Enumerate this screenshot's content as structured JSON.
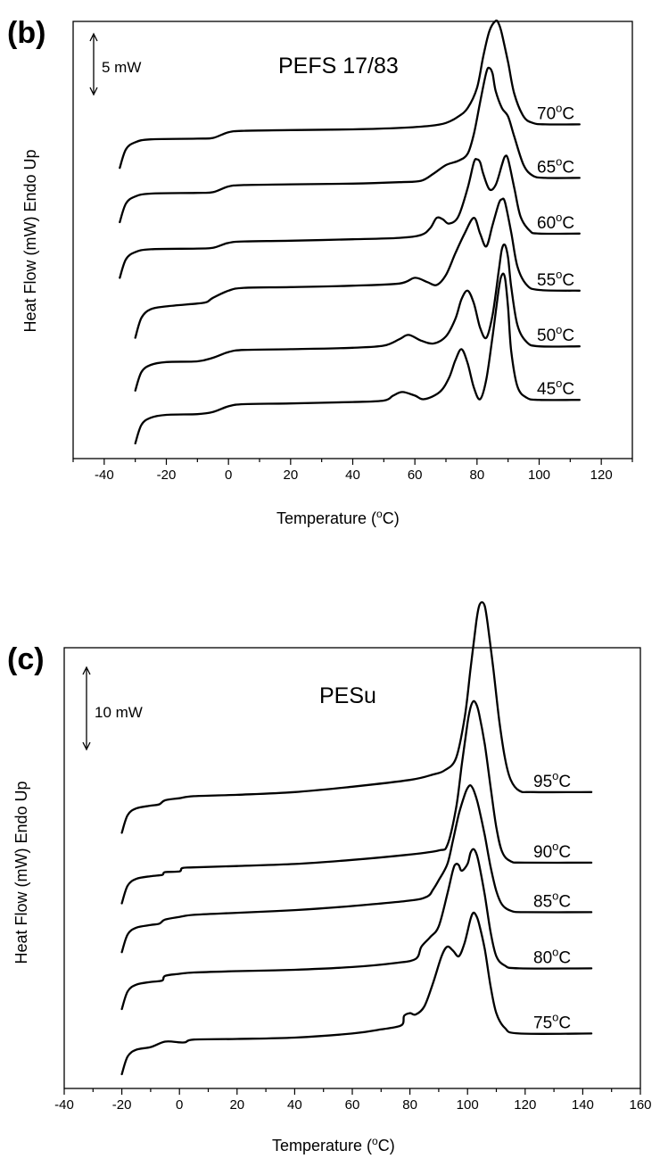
{
  "chart_data": [
    {
      "type": "line",
      "panel_label": "(b)",
      "title": "PEFS 17/83",
      "xlabel": "Temperature (°C)",
      "ylabel": "Heat Flow (mW) Endo Up",
      "scale_bar": "5 mW",
      "xlim": [
        -50,
        130
      ],
      "xticks": [
        -40,
        -20,
        0,
        20,
        40,
        60,
        80,
        100,
        120
      ],
      "grid": false,
      "series": [
        {
          "name": "45°C",
          "label": "45",
          "offset": 0,
          "x": [
            -30,
            -28,
            -25,
            -20,
            -10,
            -5,
            0,
            5,
            20,
            40,
            50,
            53,
            56,
            60,
            63,
            68,
            71,
            73,
            75,
            77,
            79,
            81,
            83,
            85,
            87,
            88,
            89,
            90,
            91,
            93,
            96,
            100,
            113
          ],
          "y": [
            0,
            1.3,
            1.8,
            2.0,
            2.05,
            2.2,
            2.6,
            2.75,
            2.8,
            2.9,
            3.0,
            3.35,
            3.6,
            3.35,
            3.1,
            3.6,
            4.6,
            5.8,
            6.6,
            5.6,
            3.9,
            3.1,
            4.5,
            7.5,
            10.8,
            11.8,
            11.6,
            9.5,
            6.5,
            4.0,
            3.2,
            3.05,
            3.05
          ]
        },
        {
          "name": "50°C",
          "label": "50",
          "offset": 3.7,
          "x": [
            -30,
            -28,
            -25,
            -20,
            -10,
            -5,
            0,
            5,
            20,
            40,
            50,
            55,
            58,
            62,
            66,
            70,
            73,
            75,
            77,
            79,
            81,
            83,
            85,
            87,
            88,
            89,
            90,
            91,
            93,
            96,
            100,
            113
          ],
          "y": [
            0,
            1.3,
            1.8,
            2.0,
            2.05,
            2.3,
            2.7,
            2.85,
            2.9,
            3.0,
            3.15,
            3.6,
            3.9,
            3.5,
            3.3,
            3.8,
            5.0,
            6.4,
            7.0,
            6.1,
            4.4,
            3.7,
            5.3,
            8.4,
            9.9,
            10.2,
            9.3,
            7.3,
            4.6,
            3.4,
            3.1,
            3.1
          ]
        },
        {
          "name": "55°C",
          "label": "55",
          "offset": 7.4,
          "x": [
            -30,
            -28,
            -25,
            -20,
            -10,
            -7,
            -5,
            0,
            5,
            20,
            40,
            55,
            60,
            64,
            67,
            70,
            73,
            76,
            79,
            81,
            83,
            85,
            87,
            88,
            89,
            91,
            93,
            96,
            100,
            113
          ],
          "y": [
            0,
            1.4,
            2.0,
            2.2,
            2.4,
            2.5,
            2.8,
            3.3,
            3.5,
            3.55,
            3.65,
            3.8,
            4.2,
            3.9,
            3.7,
            4.4,
            5.9,
            7.3,
            8.4,
            7.3,
            6.4,
            7.9,
            9.4,
            9.7,
            9.5,
            7.4,
            5.0,
            3.7,
            3.35,
            3.3
          ]
        },
        {
          "name": "60°C",
          "label": "60",
          "offset": 11.6,
          "x": [
            -35,
            -33,
            -30,
            -25,
            -10,
            -5,
            0,
            5,
            20,
            40,
            55,
            62,
            65,
            67,
            69,
            71,
            74,
            77,
            79,
            80,
            81,
            82,
            84,
            86,
            88,
            89,
            90,
            92,
            94,
            97,
            100,
            113
          ],
          "y": [
            0,
            1.3,
            1.8,
            2.0,
            2.05,
            2.1,
            2.45,
            2.55,
            2.6,
            2.7,
            2.8,
            3.0,
            3.5,
            4.2,
            4.1,
            3.8,
            4.3,
            6.3,
            8.1,
            8.3,
            8.1,
            7.3,
            6.2,
            6.5,
            7.9,
            8.5,
            8.3,
            6.3,
            4.3,
            3.3,
            3.1,
            3.1
          ]
        },
        {
          "name": "65°C",
          "label": "65",
          "offset": 15.5,
          "x": [
            -35,
            -33,
            -30,
            -25,
            -10,
            -5,
            0,
            5,
            20,
            40,
            55,
            62,
            66,
            70,
            74,
            77,
            79,
            81,
            83,
            84,
            85,
            86,
            88,
            90,
            92,
            95,
            98,
            102,
            113
          ],
          "y": [
            0,
            1.3,
            1.8,
            2.0,
            2.05,
            2.1,
            2.5,
            2.6,
            2.65,
            2.7,
            2.8,
            2.9,
            3.4,
            4.0,
            4.3,
            4.8,
            6.2,
            8.4,
            10.5,
            10.8,
            10.4,
            9.2,
            8.0,
            7.4,
            6.0,
            4.0,
            3.25,
            3.1,
            3.1
          ]
        },
        {
          "name": "70°C",
          "label": "70",
          "offset": 19.3,
          "x": [
            -35,
            -33,
            -30,
            -25,
            -10,
            -5,
            0,
            5,
            20,
            40,
            55,
            65,
            70,
            74,
            77,
            80,
            82,
            84,
            86,
            87,
            88,
            90,
            92,
            95,
            98,
            102,
            113
          ],
          "y": [
            0,
            1.3,
            1.8,
            2.0,
            2.05,
            2.1,
            2.5,
            2.6,
            2.65,
            2.7,
            2.8,
            2.95,
            3.15,
            3.6,
            4.2,
            5.6,
            7.8,
            9.6,
            10.3,
            10.1,
            9.4,
            7.4,
            5.2,
            3.6,
            3.15,
            3.05,
            3.05
          ]
        }
      ]
    },
    {
      "type": "line",
      "panel_label": "(c)",
      "title": "PESu",
      "xlabel": "Temperature (°C)",
      "ylabel": "Heat Flow (mW) Endo Up",
      "scale_bar": "10 mW",
      "xlim": [
        -40,
        160
      ],
      "xticks": [
        -40,
        -20,
        0,
        20,
        40,
        60,
        80,
        100,
        120,
        140,
        160
      ],
      "grid": false,
      "series": [
        {
          "name": "75°C",
          "label": "75",
          "offset": 0,
          "x": [
            -20,
            -18,
            -15,
            -10,
            -5,
            0,
            2,
            5,
            20,
            40,
            60,
            70,
            77,
            78,
            80,
            82,
            85,
            88,
            91,
            93,
            95,
            97,
            99,
            101,
            102,
            103,
            104,
            106,
            108,
            110,
            113,
            118,
            143
          ],
          "y": [
            0,
            1.3,
            1.8,
            2.0,
            2.4,
            2.35,
            2.35,
            2.55,
            2.6,
            2.7,
            3.0,
            3.3,
            3.6,
            4.3,
            4.5,
            4.4,
            5.0,
            6.7,
            8.7,
            9.4,
            9.1,
            8.7,
            9.7,
            11.4,
            11.9,
            11.7,
            11.1,
            9.2,
            6.5,
            4.5,
            3.4,
            3.0,
            3.0
          ]
        },
        {
          "name": "80°C",
          "label": "80",
          "offset": 4.8,
          "x": [
            -20,
            -18,
            -15,
            -10,
            -6,
            -5,
            0,
            5,
            20,
            40,
            60,
            75,
            82,
            84,
            87,
            90,
            93,
            95,
            96,
            97,
            98,
            100,
            101,
            102,
            103,
            104,
            106,
            108,
            110,
            113,
            118,
            143
          ],
          "y": [
            0,
            1.3,
            1.8,
            2.0,
            2.1,
            2.45,
            2.6,
            2.7,
            2.8,
            2.9,
            3.1,
            3.4,
            3.7,
            4.6,
            5.3,
            6.1,
            8.5,
            10.3,
            10.7,
            10.6,
            10.2,
            10.7,
            11.5,
            11.8,
            11.5,
            10.7,
            8.4,
            5.7,
            3.9,
            3.2,
            3.0,
            3.0
          ]
        },
        {
          "name": "85°C",
          "label": "85",
          "offset": 9.0,
          "x": [
            -20,
            -18,
            -15,
            -10,
            -7,
            -5,
            0,
            5,
            20,
            40,
            60,
            80,
            86,
            88,
            90,
            93,
            95,
            97,
            99,
            100,
            101,
            102,
            103,
            104,
            106,
            108,
            110,
            112,
            115,
            120,
            143
          ],
          "y": [
            0,
            1.3,
            1.8,
            2.0,
            2.1,
            2.4,
            2.6,
            2.75,
            2.9,
            3.1,
            3.4,
            3.8,
            4.1,
            4.6,
            5.3,
            6.5,
            8.3,
            10.2,
            11.6,
            12.1,
            12.3,
            12.0,
            11.4,
            10.6,
            8.6,
            6.3,
            4.5,
            3.5,
            3.05,
            2.95,
            2.95
          ]
        },
        {
          "name": "90°C",
          "label": "90",
          "offset": 12.6,
          "x": [
            -20,
            -18,
            -15,
            -10,
            -6,
            -5,
            0,
            1,
            5,
            20,
            40,
            60,
            80,
            90,
            93,
            96,
            98,
            100,
            101,
            102,
            103,
            104,
            106,
            108,
            110,
            112,
            115,
            120,
            143
          ],
          "y": [
            0,
            1.3,
            1.8,
            2.0,
            2.1,
            2.3,
            2.35,
            2.6,
            2.65,
            2.75,
            2.9,
            3.2,
            3.6,
            3.9,
            4.3,
            7.0,
            10.2,
            13.3,
            14.4,
            14.9,
            14.7,
            14.0,
            11.7,
            8.6,
            5.6,
            3.8,
            3.1,
            3.0,
            3.0
          ]
        },
        {
          "name": "95°C",
          "label": "95",
          "offset": 17.8,
          "x": [
            -20,
            -18,
            -15,
            -10,
            -7,
            -5,
            0,
            5,
            20,
            40,
            60,
            80,
            88,
            92,
            96,
            99,
            101,
            103,
            104,
            105,
            106,
            107,
            109,
            111,
            113,
            115,
            118,
            123,
            143
          ],
          "y": [
            0,
            1.3,
            1.8,
            2.0,
            2.1,
            2.4,
            2.55,
            2.7,
            2.8,
            3.0,
            3.4,
            3.9,
            4.3,
            4.6,
            5.5,
            8.5,
            12.0,
            15.5,
            16.7,
            17.0,
            16.7,
            15.4,
            12.0,
            8.3,
            5.5,
            3.9,
            3.1,
            3.0,
            3.0
          ]
        }
      ]
    }
  ]
}
